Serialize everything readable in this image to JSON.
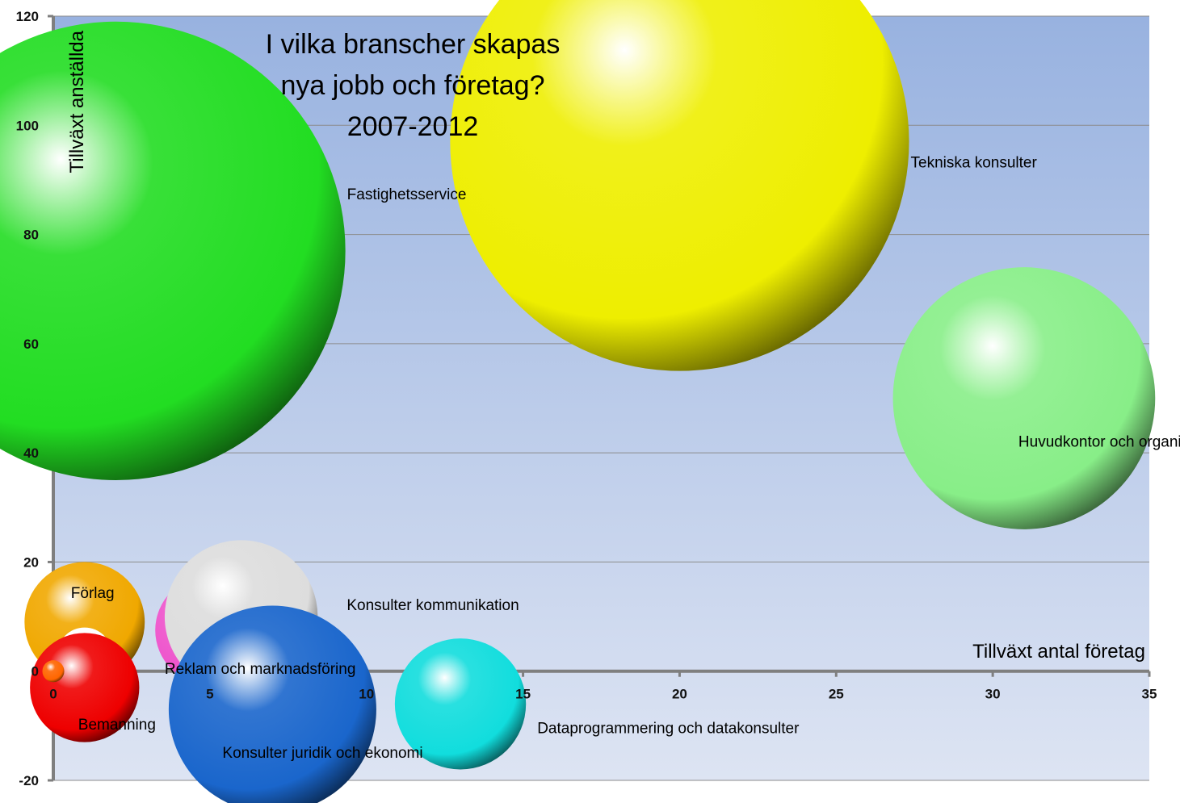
{
  "chart_data": {
    "type": "bubble",
    "title_lines": [
      "I vilka branscher skapas",
      "nya jobb och företag?",
      "2007-2012"
    ],
    "xlabel": "Tillväxt antal företag",
    "ylabel": "Tillväxt anställda",
    "xlim": [
      0,
      35
    ],
    "ylim": [
      -20,
      120
    ],
    "x_ticks": [
      0,
      5,
      10,
      15,
      20,
      25,
      30,
      35
    ],
    "y_ticks": [
      -20,
      0,
      20,
      40,
      60,
      80,
      100,
      120
    ],
    "grid": true,
    "series": [
      {
        "name": "Fastighetsservice",
        "x": 2,
        "y": 77,
        "size": 42,
        "color": "#22dd22"
      },
      {
        "name": "Tekniska konsulter",
        "x": 20,
        "y": 97,
        "size": 42,
        "color": "#eeee00"
      },
      {
        "name": "Huvudkontor och organisationskonsulter",
        "x": 31,
        "y": 50,
        "size": 24,
        "color": "#88ee88"
      },
      {
        "name": "Förlag",
        "x": 1,
        "y": 9,
        "size": 11,
        "color": "#f0a800"
      },
      {
        "name": "",
        "x": 1,
        "y": 3,
        "size": 5,
        "color": "#ffffff"
      },
      {
        "name": "Bemanning",
        "x": 1,
        "y": -3,
        "size": 10,
        "color": "#ee0000"
      },
      {
        "name": "Reklam och marknadsföring",
        "x": 5,
        "y": 7.5,
        "size": 10,
        "color": "#ee55cc"
      },
      {
        "name": "Konsulter kommunikation",
        "x": 6,
        "y": 10,
        "size": 14,
        "color": "#dddddd"
      },
      {
        "name": "Konsulter juridik och ekonomi",
        "x": 7,
        "y": -7,
        "size": 19,
        "color": "#1a66cc"
      },
      {
        "name": "Dataprogrammering och datakonsulter",
        "x": 13,
        "y": -6,
        "size": 12,
        "color": "#11dddd"
      },
      {
        "name": "",
        "x": 0,
        "y": 0,
        "size": 2,
        "color": "#ff6600"
      }
    ]
  }
}
